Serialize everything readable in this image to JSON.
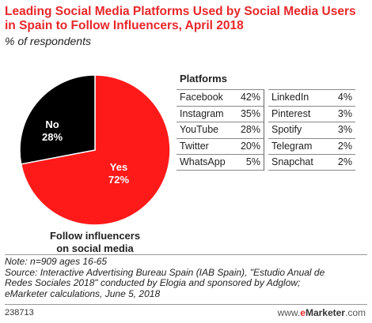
{
  "header": {
    "title": "Leading Social Media Platforms Used by Social Media Users in Spain to Follow Influencers, April 2018",
    "subtitle": "% of respondents"
  },
  "chart_data": [
    {
      "type": "pie",
      "title": "Follow influencers on social media",
      "slices": [
        {
          "label": "Yes",
          "value": 72,
          "display": "72%",
          "color": "#ff1a1a"
        },
        {
          "label": "No",
          "value": 28,
          "display": "28%",
          "color": "#000000"
        }
      ]
    },
    {
      "type": "table",
      "title": "Platforms",
      "rows": [
        {
          "platform": "Facebook",
          "value": 42,
          "display": "42%"
        },
        {
          "platform": "Instagram",
          "value": 35,
          "display": "35%"
        },
        {
          "platform": "YouTube",
          "value": 28,
          "display": "28%"
        },
        {
          "platform": "Twitter",
          "value": 20,
          "display": "20%"
        },
        {
          "platform": "WhatsApp",
          "value": 5,
          "display": "5%"
        },
        {
          "platform": "LinkedIn",
          "value": 4,
          "display": "4%"
        },
        {
          "platform": "Pinterest",
          "value": 3,
          "display": "3%"
        },
        {
          "platform": "Spotify",
          "value": 3,
          "display": "3%"
        },
        {
          "platform": "Telegram",
          "value": 2,
          "display": "2%"
        },
        {
          "platform": "Snapchat",
          "value": 2,
          "display": "2%"
        }
      ]
    }
  ],
  "pie_caption": {
    "line1": "Follow influencers",
    "line2": "on social media"
  },
  "notes": {
    "line1": "Note: n=909 ages 16-65",
    "line2": "Source: Interactive Advertising Bureau Spain (IAB Spain), \"Estudio Anual de",
    "line3": "Redes Sociales 2018\" conducted by Elogia and sponsored by Adglow;",
    "line4": "eMarketer calculations, June 5, 2018"
  },
  "footer": {
    "chart_id": "238713",
    "brand_prefix": "www.",
    "brand_e": "e",
    "brand_main": "Marketer",
    "brand_suffix": ".com"
  }
}
